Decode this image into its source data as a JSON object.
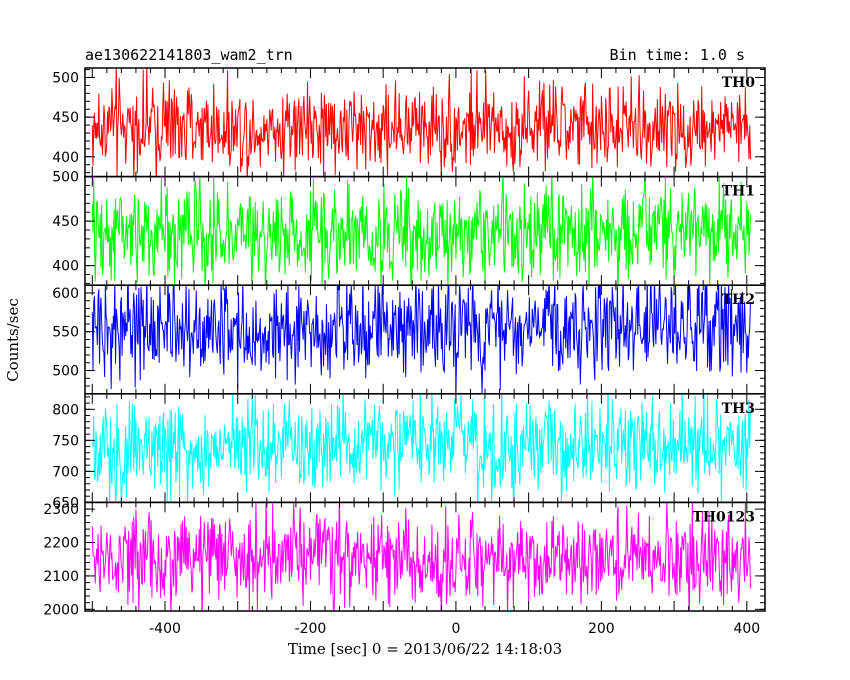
{
  "header": {
    "left": "ae130622141803_wam2_trn",
    "right": "Bin time: 1.0 s"
  },
  "chart_data": {
    "type": "line",
    "xlabel": "Time [sec] 0 = 2013/06/22 14:18:03",
    "ylabel": "Counts/sec",
    "xlim": [
      -510,
      425
    ],
    "xticks": [
      -400,
      -200,
      0,
      200,
      400
    ],
    "x_range": [
      -500,
      405
    ],
    "bin_time_s": 1.0,
    "grid": false,
    "panels": [
      {
        "name": "TH0",
        "color": "#ff0000",
        "ylim": [
          375,
          512
        ],
        "yticks": [
          400,
          450,
          500
        ],
        "mean": 437,
        "spread": 22
      },
      {
        "name": "TH1",
        "color": "#00ff00",
        "ylim": [
          378,
          500
        ],
        "yticks": [
          400,
          450,
          500
        ],
        "mean": 437,
        "spread": 21
      },
      {
        "name": "TH2",
        "color": "#0000ff",
        "ylim": [
          470,
          610
        ],
        "yticks": [
          500,
          550,
          600
        ],
        "mean": 555,
        "spread": 25
      },
      {
        "name": "TH3",
        "color": "#00ffff",
        "ylim": [
          650,
          825
        ],
        "yticks": [
          650,
          700,
          750,
          800
        ],
        "mean": 740,
        "spread": 30
      },
      {
        "name": "TH0123",
        "color": "#ff00ff",
        "ylim": [
          1995,
          2320
        ],
        "yticks": [
          2000,
          2100,
          2200,
          2300
        ],
        "mean": 2150,
        "spread": 55
      }
    ]
  }
}
